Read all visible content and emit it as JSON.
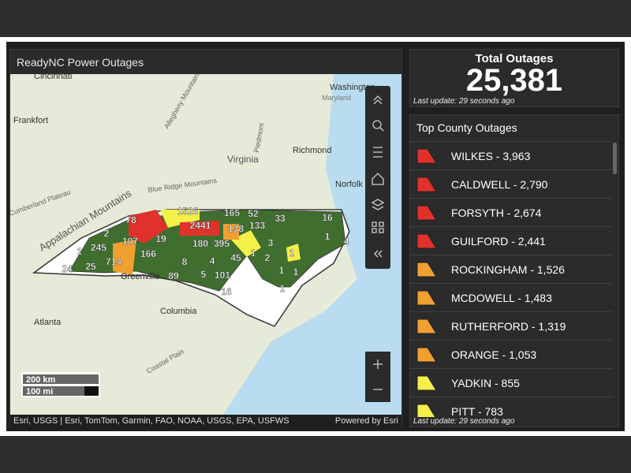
{
  "header": {
    "title": "ReadyNC Power Outages"
  },
  "map": {
    "places": [
      "Cincinnati",
      "Washington",
      "Maryland",
      "Frankfort",
      "Virginia",
      "Richmond",
      "Norfolk",
      "Appalachian Mountains",
      "Greenville",
      "Atlanta",
      "Columbia",
      "Piedmont",
      "Coastal Plain",
      "Blue Ridge Mountains",
      "Allegheny Mountains",
      "Cumberland Plateau"
    ],
    "county_labels": [
      "78",
      "1526",
      "165",
      "52",
      "33",
      "16",
      "2",
      "245",
      "1",
      "107",
      "19",
      "2441",
      "138",
      "133",
      "1",
      "24",
      "25",
      "714",
      "166",
      "180",
      "395",
      "3",
      "1",
      "4",
      "8",
      "4",
      "45",
      "2",
      "1",
      "89",
      "5",
      "101",
      "16",
      "1",
      "1",
      "1"
    ],
    "scale": [
      "200 km",
      "100 mi"
    ],
    "attribution": "Esri, USGS | Esri, TomTom, Garmin, FAO, NOAA, USGS, EPA, USFWS",
    "powered_by": "Powered by Esri"
  },
  "total": {
    "title": "Total Outages",
    "value": "25,381",
    "updated": "Last update: 29 seconds ago"
  },
  "top_counties": {
    "title": "Top County Outages",
    "updated": "Last update: 29 seconds ago",
    "rows": [
      {
        "label": "WILKES - 3,963",
        "color": "#e0322a"
      },
      {
        "label": "CALDWELL - 2,790",
        "color": "#e0322a"
      },
      {
        "label": "FORSYTH - 2,674",
        "color": "#e0322a"
      },
      {
        "label": "GUILFORD - 2,441",
        "color": "#e0322a"
      },
      {
        "label": "ROCKINGHAM - 1,526",
        "color": "#f0a030"
      },
      {
        "label": "MCDOWELL - 1,483",
        "color": "#f0a030"
      },
      {
        "label": "RUTHERFORD - 1,319",
        "color": "#f0a030"
      },
      {
        "label": "ORANGE - 1,053",
        "color": "#f0a030"
      },
      {
        "label": "YADKIN - 855",
        "color": "#f5ef4a"
      },
      {
        "label": "PITT - 783",
        "color": "#f5ef4a"
      }
    ]
  }
}
